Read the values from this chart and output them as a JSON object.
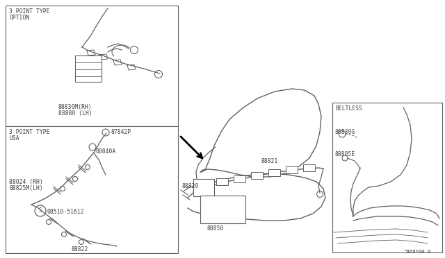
{
  "line_color": "#606060",
  "text_color": "#404040",
  "box1_label_line1": "3 POINT TYPE",
  "box1_label_line2": "OPTION",
  "box1_part1": "88830M(RH)",
  "box1_part2": "88880 (LH)",
  "box2_label_line1": "3 POINT TYPE",
  "box2_label_line2": "USA",
  "box2_part0": "87842P",
  "box2_part1": "00840A",
  "box2_part2": "88024 (RH)",
  "box2_part3": "88825M(LH)",
  "box2_part4": "08510-51612",
  "box2_part5": "88822",
  "beltless_label": "BELTLESS",
  "beltless_part0": "86830G",
  "beltless_part1": "88805E",
  "main_part0": "88820",
  "main_part1": "88821",
  "main_part2": "88850",
  "footer": "^869*00.0"
}
